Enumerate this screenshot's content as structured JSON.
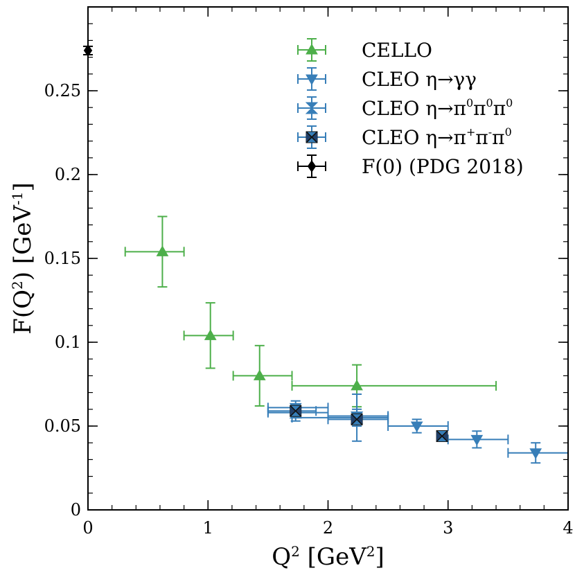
{
  "chart_data": {
    "type": "scatter",
    "xlabel": "Q² [GeV²]",
    "ylabel": "F(Q²) [GeV⁻¹]",
    "xlim": [
      0,
      4
    ],
    "ylim": [
      0,
      0.3
    ],
    "x_ticks": [
      "0",
      "1",
      "2",
      "3",
      "4"
    ],
    "y_ticks": [
      "0",
      "0.05",
      "0.1",
      "0.15",
      "0.2",
      "0.25"
    ],
    "legend_position": "top-right",
    "series": [
      {
        "name": "CELLO",
        "color": "#4daf4a",
        "marker": "triangle-up",
        "points": [
          {
            "x": 0.62,
            "y": 0.154,
            "x_lo": 0.31,
            "x_hi": 0.8,
            "y_err": 0.021
          },
          {
            "x": 1.02,
            "y": 0.104,
            "x_lo": 0.8,
            "x_hi": 1.21,
            "y_err": 0.0195
          },
          {
            "x": 1.43,
            "y": 0.08,
            "x_lo": 1.21,
            "x_hi": 1.7,
            "y_err": 0.018
          },
          {
            "x": 2.24,
            "y": 0.074,
            "x_lo": 1.7,
            "x_hi": 3.4,
            "y_err": 0.0125
          }
        ]
      },
      {
        "name": "CLEO η→γγ",
        "color": "#377eb8",
        "marker": "triangle-down",
        "points": [
          {
            "x": 1.73,
            "y": 0.061,
            "x_lo": 1.5,
            "x_hi": 2.0,
            "y_err": 0.004
          },
          {
            "x": 2.24,
            "y": 0.056,
            "x_lo": 2.0,
            "x_hi": 2.5,
            "y_err": 0.004
          },
          {
            "x": 2.74,
            "y": 0.05,
            "x_lo": 2.5,
            "x_hi": 3.0,
            "y_err": 0.004
          },
          {
            "x": 3.24,
            "y": 0.042,
            "x_lo": 3.0,
            "x_hi": 3.5,
            "y_err": 0.005
          },
          {
            "x": 3.73,
            "y": 0.034,
            "x_lo": 3.5,
            "x_hi": 4.0,
            "y_err": 0.006
          }
        ]
      },
      {
        "name": "CLEO η→π⁰π⁰π⁰",
        "color": "#377eb8",
        "marker": "hourglass",
        "points": [
          {
            "x": 1.73,
            "y": 0.058,
            "x_lo": 1.5,
            "x_hi": 2.0,
            "y_err": 0.005
          },
          {
            "x": 2.24,
            "y": 0.055,
            "x_lo": 1.7,
            "x_hi": 2.5,
            "y_err": 0.014
          }
        ]
      },
      {
        "name": "CLEO η→π⁺π⁻π⁰",
        "color": "#377eb8",
        "marker": "square-x",
        "points": [
          {
            "x": 1.73,
            "y": 0.059,
            "x_lo": 1.5,
            "x_hi": 1.9,
            "y_err": 0.004
          },
          {
            "x": 2.24,
            "y": 0.054,
            "x_lo": 2.0,
            "x_hi": 2.5,
            "y_err": 0.004
          },
          {
            "x": 2.95,
            "y": 0.044,
            "x_lo": 2.95,
            "x_hi": 2.95,
            "y_err": 0.002
          }
        ]
      },
      {
        "name": "F(0) (PDG 2018)",
        "color": "#000000",
        "marker": "diamond",
        "points": [
          {
            "x": 0.0,
            "y": 0.274,
            "x_lo": 0.0,
            "x_hi": 0.0,
            "y_err": 0.0025
          }
        ]
      }
    ]
  }
}
